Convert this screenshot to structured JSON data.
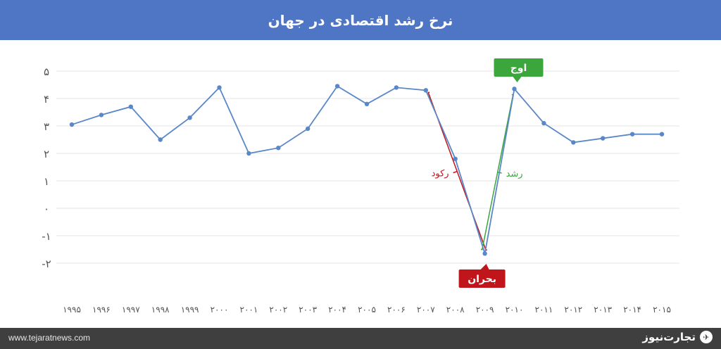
{
  "header": {
    "title": "نرخ رشد اقتصادی در جهان"
  },
  "footer": {
    "site": "www.tejaratnews.com",
    "brand": "تجارت‌نیوز"
  },
  "icons": {
    "brand_logo": "brand-logo-icon"
  },
  "colors": {
    "header_bg": "#4f76c4",
    "line": "#5a87c8",
    "recession": "#c0161b",
    "growth": "#3aa63c",
    "footer_bg": "#3f3f3f"
  },
  "chart_data": {
    "type": "line",
    "title": "",
    "xlabel": "",
    "ylabel": "",
    "ylim": [
      -2,
      5
    ],
    "grid": true,
    "x": [
      "۱۹۹۵",
      "۱۹۹۶",
      "۱۹۹۷",
      "۱۹۹۸",
      "۱۹۹۹",
      "۲۰۰۰",
      "۲۰۰۱",
      "۲۰۰۲",
      "۲۰۰۳",
      "۲۰۰۴",
      "۲۰۰۵",
      "۲۰۰۶",
      "۲۰۰۷",
      "۲۰۰۸",
      "۲۰۰۹",
      "۲۰۱۰",
      "۲۰۱۱",
      "۲۰۱۲",
      "۲۰۱۳",
      "۲۰۱۴",
      "۲۰۱۵"
    ],
    "yticks": [
      {
        "value": 5,
        "label": "۵"
      },
      {
        "value": 4,
        "label": "۴"
      },
      {
        "value": 3,
        "label": "۳"
      },
      {
        "value": 2,
        "label": "۲"
      },
      {
        "value": 1,
        "label": "۱"
      },
      {
        "value": 0,
        "label": "۰"
      },
      {
        "value": -1,
        "label": "-۱"
      },
      {
        "value": -2,
        "label": "-۲"
      }
    ],
    "series": [
      {
        "values": [
          3.05,
          3.4,
          3.7,
          2.5,
          3.3,
          4.4,
          2.0,
          2.2,
          2.9,
          4.45,
          3.8,
          4.4,
          4.3,
          1.8,
          -1.65,
          4.35,
          3.1,
          2.4,
          2.55,
          2.7,
          2.7
        ]
      }
    ],
    "annotations": {
      "peak": {
        "label": "اوج",
        "year_index": 15
      },
      "crisis": {
        "label": "بحران",
        "year_index": 14
      },
      "recession": {
        "label": "رکود",
        "from_index": 12,
        "to_index": 14
      },
      "growth": {
        "label": "رشد",
        "from_index": 14,
        "to_index": 15
      }
    }
  }
}
